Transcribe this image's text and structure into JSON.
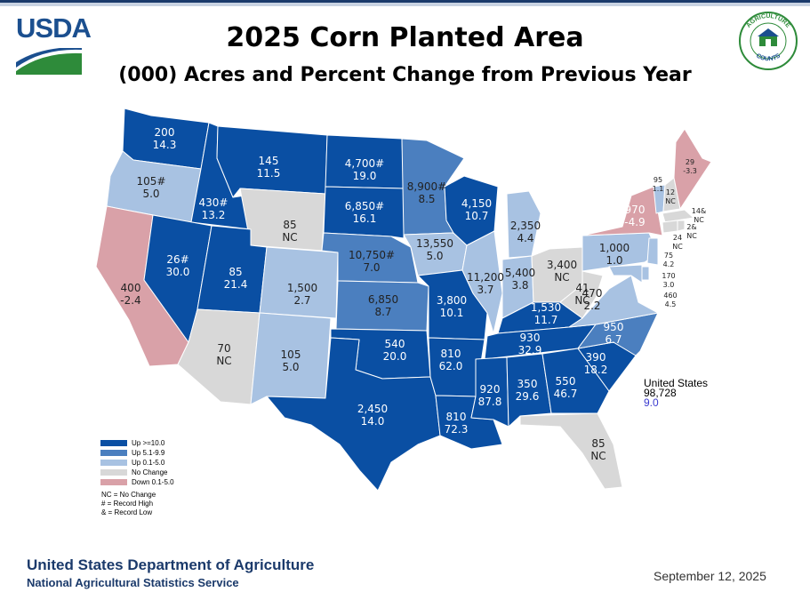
{
  "header": {
    "logo_text": "USDA",
    "title": "2025 Corn Planted Area",
    "subtitle": "(000) Acres and Percent Change from Previous Year",
    "seal_text": [
      "AGRICULTURE",
      "COUNTS"
    ]
  },
  "colors": {
    "up_high": "#0a4fa3",
    "up_mid": "#4b7fbf",
    "up_low": "#a8c2e2",
    "no_change": "#d8d8d8",
    "down": "#d9a1a8",
    "brand_blue": "#1b3a6b",
    "brand_green": "#2e8b3a"
  },
  "states": [
    {
      "state": "WA",
      "acres": "200",
      "change": "14.3",
      "class": "up_high"
    },
    {
      "state": "OR",
      "acres": "105#",
      "change": "5.0",
      "class": "up_low"
    },
    {
      "state": "CA",
      "acres": "400",
      "change": "-2.4",
      "class": "down"
    },
    {
      "state": "ID",
      "acres": "430#",
      "change": "13.2",
      "class": "up_high"
    },
    {
      "state": "NV",
      "acres": "26#",
      "change": "30.0",
      "class": "up_high"
    },
    {
      "state": "MT",
      "acres": "145",
      "change": "11.5",
      "class": "up_high"
    },
    {
      "state": "WY",
      "acres": "85",
      "change": "NC",
      "class": "no_change"
    },
    {
      "state": "UT",
      "acres": "85",
      "change": "21.4",
      "class": "up_high"
    },
    {
      "state": "AZ",
      "acres": "70",
      "change": "NC",
      "class": "no_change"
    },
    {
      "state": "CO",
      "acres": "1,500",
      "change": "2.7",
      "class": "up_low"
    },
    {
      "state": "NM",
      "acres": "105",
      "change": "5.0",
      "class": "up_low"
    },
    {
      "state": "ND",
      "acres": "4,700#",
      "change": "19.0",
      "class": "up_high"
    },
    {
      "state": "SD",
      "acres": "6,850#",
      "change": "16.1",
      "class": "up_high"
    },
    {
      "state": "NE",
      "acres": "10,750#",
      "change": "7.0",
      "class": "up_mid"
    },
    {
      "state": "KS",
      "acres": "6,850",
      "change": "8.7",
      "class": "up_mid"
    },
    {
      "state": "OK",
      "acres": "540",
      "change": "20.0",
      "class": "up_high"
    },
    {
      "state": "TX",
      "acres": "2,450",
      "change": "14.0",
      "class": "up_high"
    },
    {
      "state": "MN",
      "acres": "8,900#",
      "change": "8.5",
      "class": "up_mid"
    },
    {
      "state": "IA",
      "acres": "13,550",
      "change": "5.0",
      "class": "up_low"
    },
    {
      "state": "MO",
      "acres": "3,800",
      "change": "10.1",
      "class": "up_high"
    },
    {
      "state": "AR",
      "acres": "810",
      "change": "62.0",
      "class": "up_high"
    },
    {
      "state": "LA",
      "acres": "810",
      "change": "72.3",
      "class": "up_high"
    },
    {
      "state": "WI",
      "acres": "4,150",
      "change": "10.7",
      "class": "up_high"
    },
    {
      "state": "IL",
      "acres": "11,200",
      "change": "3.7",
      "class": "up_low"
    },
    {
      "state": "MI",
      "acres": "2,350",
      "change": "4.4",
      "class": "up_low"
    },
    {
      "state": "IN",
      "acres": "5,400",
      "change": "3.8",
      "class": "up_low"
    },
    {
      "state": "OH",
      "acres": "3,400",
      "change": "NC",
      "class": "no_change"
    },
    {
      "state": "KY",
      "acres": "1,530",
      "change": "11.7",
      "class": "up_high"
    },
    {
      "state": "TN",
      "acres": "930",
      "change": "32.9",
      "class": "up_high"
    },
    {
      "state": "MS",
      "acres": "920",
      "change": "87.8",
      "class": "up_high"
    },
    {
      "state": "AL",
      "acres": "350",
      "change": "29.6",
      "class": "up_high"
    },
    {
      "state": "GA",
      "acres": "550",
      "change": "46.7",
      "class": "up_high"
    },
    {
      "state": "FL",
      "acres": "85",
      "change": "NC",
      "class": "no_change"
    },
    {
      "state": "SC",
      "acres": "390",
      "change": "18.2",
      "class": "up_high"
    },
    {
      "state": "NC",
      "acres": "950",
      "change": "6.7",
      "class": "up_mid"
    },
    {
      "state": "VA",
      "acres": "470",
      "change": "2.2",
      "class": "up_low"
    },
    {
      "state": "WV",
      "acres": "41",
      "change": "NC",
      "class": "no_change"
    },
    {
      "state": "PA",
      "acres": "1,000",
      "change": "1.0",
      "class": "up_low"
    },
    {
      "state": "NY",
      "acres": "970",
      "change": "-4.9",
      "class": "down"
    },
    {
      "state": "VT",
      "acres": "95",
      "change": "1.1",
      "class": "up_low"
    },
    {
      "state": "NH",
      "acres": "12",
      "change": "NC",
      "class": "no_change"
    },
    {
      "state": "ME",
      "acres": "29",
      "change": "-3.3",
      "class": "down"
    },
    {
      "state": "MA",
      "acres": "14&",
      "change": "NC",
      "class": "no_change"
    },
    {
      "state": "CT",
      "acres": "24",
      "change": "NC",
      "class": "no_change"
    },
    {
      "state": "RI",
      "acres": "2&",
      "change": "NC",
      "class": "no_change"
    },
    {
      "state": "NJ",
      "acres": "75",
      "change": "4.2",
      "class": "up_low"
    },
    {
      "state": "DE",
      "acres": "170",
      "change": "3.0",
      "class": "up_low"
    },
    {
      "state": "MD",
      "acres": "460",
      "change": "4.5",
      "class": "up_low"
    }
  ],
  "us_total": {
    "label": "United States",
    "acres": "98,728",
    "change": "9.0"
  },
  "legend": [
    {
      "label": "Up >=10.0",
      "class": "up_high"
    },
    {
      "label": "Up 5.1-9.9",
      "class": "up_mid"
    },
    {
      "label": "Up 0.1-5.0",
      "class": "up_low"
    },
    {
      "label": "No Change",
      "class": "no_change"
    },
    {
      "label": "Down 0.1-5.0",
      "class": "down"
    }
  ],
  "notes": [
    "NC = No Change",
    "# = Record High",
    "& = Record Low"
  ],
  "footer": {
    "department": "United States Department of Agriculture",
    "agency": "National Agricultural Statistics Service",
    "date": "September 12, 2025"
  }
}
